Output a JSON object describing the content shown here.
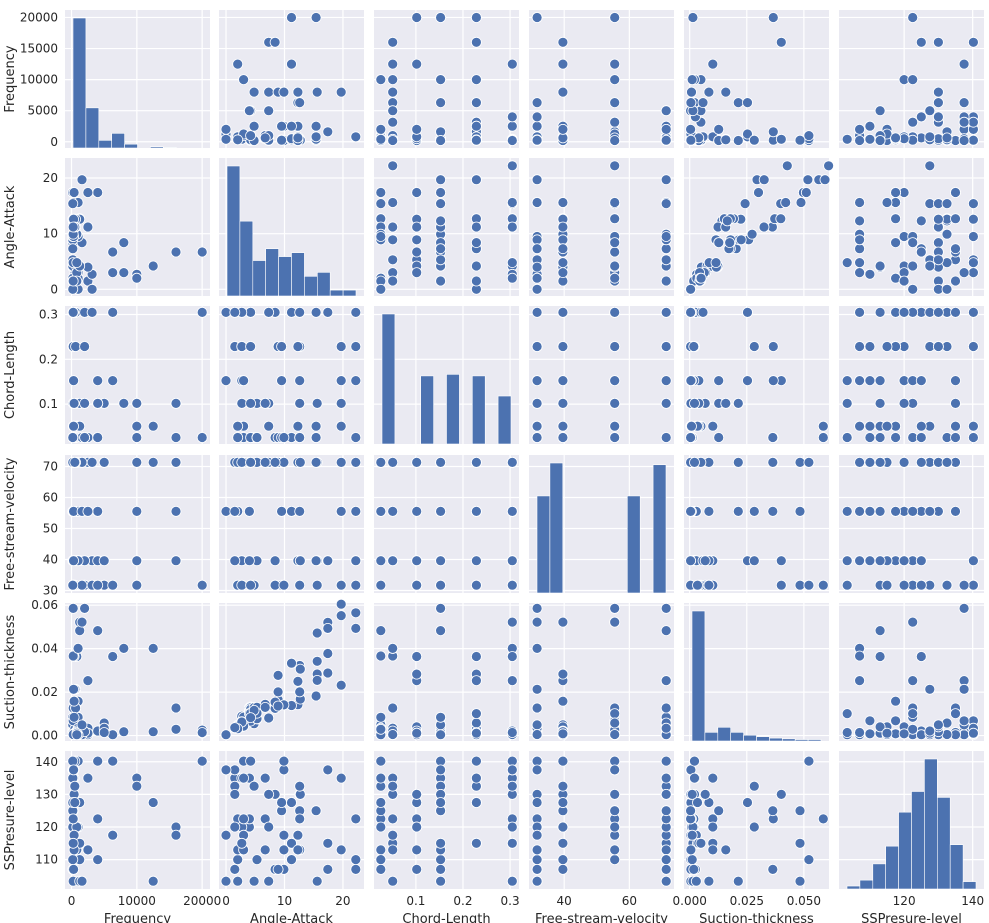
{
  "chart_data": {
    "type": "scatter",
    "kind": "pairplot",
    "style": "seaborn-darkgrid",
    "grid": true,
    "colors": {
      "panel": "#EAEAF2",
      "grid": "#FFFFFF",
      "mark": "#4C72B0",
      "edge": "#FFFFFF",
      "text": "#262626"
    },
    "variables": [
      {
        "name": "Frequency",
        "label": "Frequency",
        "ticks": [
          0,
          10000,
          20000
        ],
        "ytick_labels": [
          "0",
          "5000",
          "10000",
          "15000",
          "20000"
        ],
        "yticks": [
          0,
          5000,
          10000,
          15000,
          20000
        ],
        "range": [
          -1000,
          21200
        ],
        "values": [
          200,
          250,
          315,
          400,
          500,
          630,
          800,
          1000,
          1250,
          1600,
          2000,
          2500,
          3150,
          4000,
          5000,
          6300,
          8000,
          10000,
          12500,
          16000,
          20000
        ],
        "histogram": [
          20400,
          6300,
          1200,
          2300,
          600,
          0,
          200,
          100,
          0,
          0
        ]
      },
      {
        "name": "Angle-Attack",
        "label": "Angle-Attack",
        "ticks": [
          0,
          10,
          20
        ],
        "range": [
          -1.2,
          23.6
        ],
        "values": [
          0,
          1.5,
          2,
          2.7,
          3,
          4,
          4.2,
          4.8,
          5.3,
          6.7,
          7.3,
          8.4,
          8.9,
          9.5,
          9.9,
          11.2,
          12.3,
          12.6,
          12.7,
          15.4,
          15.6,
          17.4,
          19.7,
          22.2
        ],
        "histogram": [
          330,
          190,
          90,
          120,
          100,
          110,
          50,
          60,
          15,
          15
        ]
      },
      {
        "name": "Chord-Length",
        "label": "Chord-Length",
        "ticks": [
          0.1,
          0.2,
          0.3
        ],
        "range": [
          0.011,
          0.319
        ],
        "values": [
          0.0254,
          0.0508,
          0.1016,
          0.1524,
          0.2286,
          0.3048
        ],
        "histogram": [
          420,
          0,
          0,
          220,
          0,
          225,
          0,
          220,
          0,
          155
        ]
      },
      {
        "name": "Free-stream-velocity",
        "label": "Free-stream-velocity",
        "ticks": [
          40,
          60
        ],
        "ytick_labels": [
          "30",
          "40",
          "50",
          "60",
          "70"
        ],
        "yticks": [
          30,
          40,
          50,
          60,
          70
        ],
        "range": [
          29.2,
          73.7
        ],
        "values": [
          31.7,
          39.6,
          55.5,
          71.3
        ],
        "histogram": [
          280,
          375,
          0,
          0,
          0,
          0,
          0,
          280,
          0,
          370
        ]
      },
      {
        "name": "Suction-thickness",
        "label": "Suction-thickness",
        "ticks": [
          0.0,
          0.025,
          0.05
        ],
        "tick_labels": [
          "0.000",
          "0.025",
          "0.050"
        ],
        "ytick_labels": [
          "0.00",
          "0.02",
          "0.04",
          "0.06"
        ],
        "yticks": [
          0,
          0.02,
          0.04,
          0.06
        ],
        "range": [
          -0.0025,
          0.061
        ],
        "values": [
          0.0004,
          0.0005,
          0.0008,
          0.0011,
          0.0014,
          0.0018,
          0.0021,
          0.0025,
          0.0029,
          0.0034,
          0.004,
          0.0049,
          0.0058,
          0.0068,
          0.0084,
          0.0101,
          0.0127,
          0.0158,
          0.0213,
          0.0253,
          0.0283,
          0.0364,
          0.0366,
          0.0401,
          0.0483,
          0.0522,
          0.0585
        ],
        "histogram": [
          900,
          60,
          95,
          60,
          40,
          30,
          20,
          15,
          10,
          10
        ]
      },
      {
        "name": "SSPresure-level",
        "label": "SSPresure-level",
        "ticks": [
          120,
          140
        ],
        "ytick_labels": [
          "110",
          "120",
          "130",
          "140"
        ],
        "yticks": [
          110,
          120,
          130,
          140
        ],
        "range": [
          101,
          143.3
        ],
        "values": [
          103.4,
          107,
          110,
          113,
          115,
          117.5,
          120,
          122.5,
          125,
          127.5,
          130,
          132.5,
          135,
          137.5,
          140.2
        ],
        "histogram": [
          10,
          30,
          85,
          145,
          260,
          330,
          440,
          310,
          150,
          25
        ]
      }
    ]
  }
}
